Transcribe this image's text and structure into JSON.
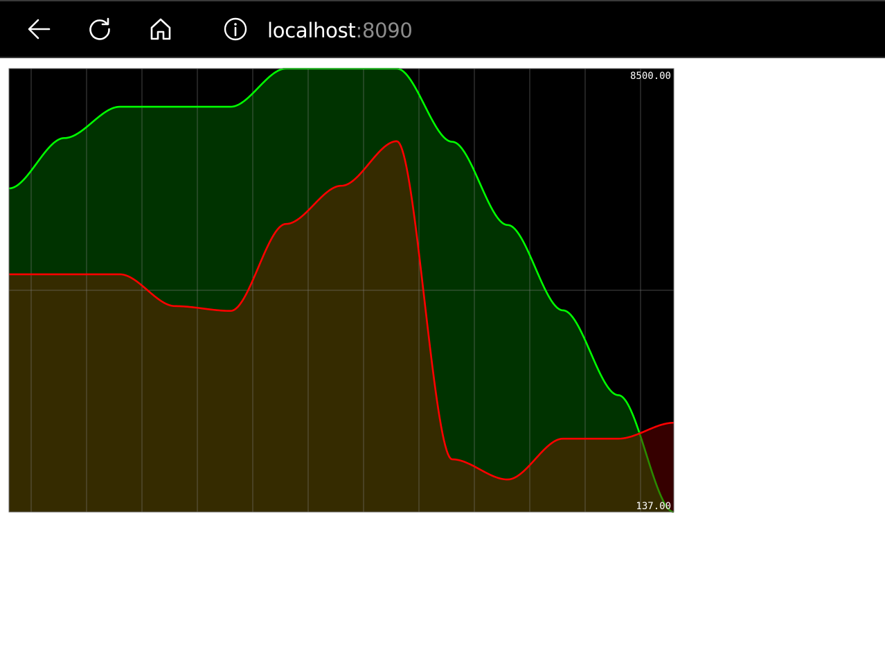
{
  "browser": {
    "back_icon": "arrow-left-icon",
    "reload_icon": "reload-icon",
    "home_icon": "home-icon",
    "info_icon": "info-icon",
    "url_host": "localhost",
    "url_port": ":8090"
  },
  "chart_data": {
    "type": "area",
    "title": "",
    "xlabel": "",
    "ylabel": "",
    "ylim": [
      137,
      8500
    ],
    "y_top_label": "8500.00",
    "y_bottom_label": "137.00",
    "grid": true,
    "background": "#000000",
    "x": [
      0,
      1,
      2,
      3,
      4,
      5,
      6,
      7,
      8,
      9,
      10,
      11,
      12
    ],
    "series": [
      {
        "values": [
          6240,
          7190,
          7780,
          7780,
          7780,
          8500,
          8500,
          8500,
          7120,
          5550,
          3940,
          2340,
          137
        ],
        "line_color": "#00ff00",
        "fill_color": "#003300",
        "fill_color_below_other": "#2a8a00"
      },
      {
        "values": [
          4620,
          4620,
          4620,
          4020,
          3930,
          5570,
          6290,
          7130,
          1130,
          750,
          1520,
          1520,
          1820
        ],
        "line_color": "#ff0000",
        "fill_color": "#352b00",
        "fill_color_above_other": "#360000"
      }
    ]
  }
}
